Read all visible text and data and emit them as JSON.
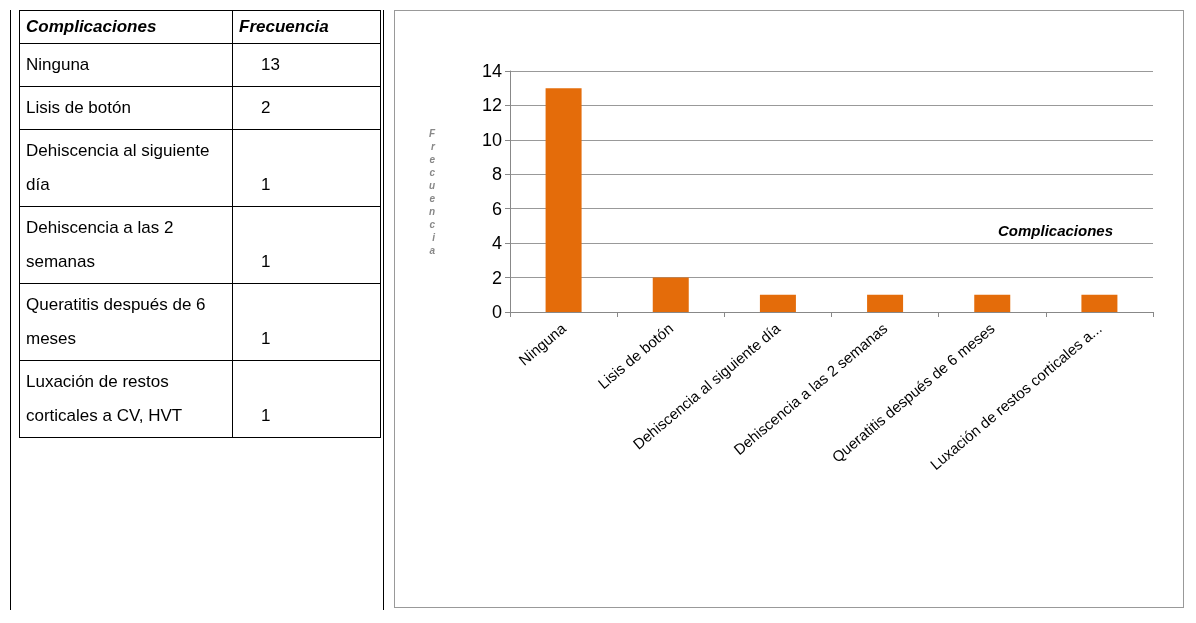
{
  "chart_data": [
    {
      "type": "other",
      "xlabel": "Complicaciones",
      "ylabel": "Frecuencia",
      "categories": [
        "Ninguna",
        "Lisis de botón",
        "Dehiscencia al siguiente día",
        "Dehiscencia a las 2 semanas",
        "Queratitis después de 6 meses",
        "Luxación de restos corticales a CV, HVT"
      ],
      "values": [
        13,
        2,
        1,
        1,
        1,
        1
      ],
      "data_labels": true
    },
    {
      "type": "bar",
      "xlabel": "Complicaciones",
      "ylabel": "Frecuencia",
      "categories": [
        "Ninguna",
        "Lisis de botón",
        "Dehiscencia al siguiente día",
        "Dehiscencia a las 2 semanas",
        "Queratitis después de 6 meses",
        "Luxación de restos corticales a..."
      ],
      "values": [
        13,
        2,
        1,
        1,
        1,
        1
      ],
      "color": "#e46c0a",
      "ylim": [
        0,
        14
      ],
      "yticks": [
        0,
        2,
        4,
        6,
        8,
        10,
        12,
        14
      ],
      "grid": "y"
    }
  ]
}
